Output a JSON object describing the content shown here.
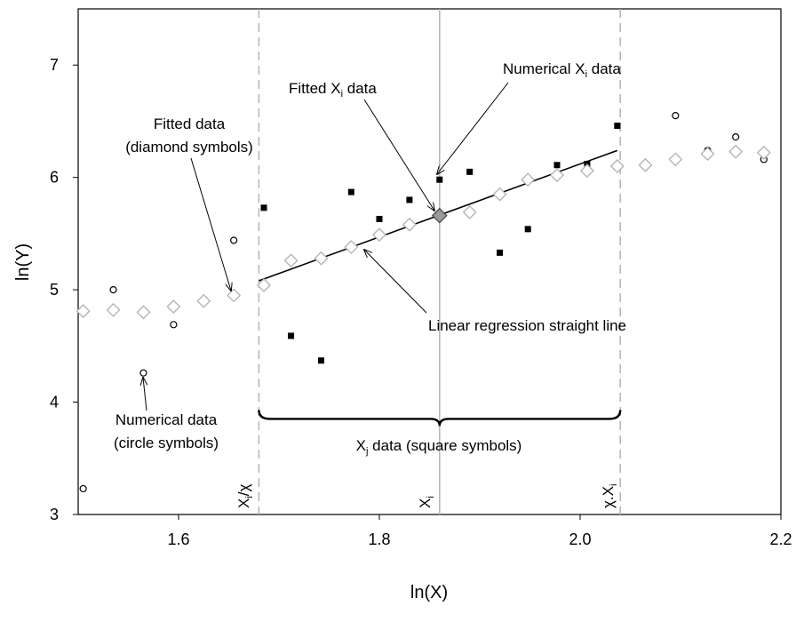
{
  "chart_data": {
    "type": "scatter",
    "title": "",
    "xlabel": "ln(X)",
    "ylabel": "ln(Y)",
    "xlim": [
      1.5,
      2.2
    ],
    "ylim": [
      3,
      7.5
    ],
    "grid": false,
    "x_ticks": [
      "1.6",
      "1.8",
      "2.0",
      "2.2"
    ],
    "y_ticks": [
      "3",
      "4",
      "5",
      "6",
      "7"
    ],
    "series": [
      {
        "marker": "open-circle",
        "x": [
          1.505,
          1.535,
          1.565,
          1.595,
          1.625,
          1.655,
          2.065,
          2.095,
          2.127,
          2.155,
          2.183
        ],
        "y": [
          3.23,
          5.0,
          4.26,
          4.69,
          4.9,
          5.44,
          6.1,
          6.55,
          6.24,
          6.36,
          6.16
        ]
      },
      {
        "marker": "filled-square",
        "x": [
          1.685,
          1.712,
          1.742,
          1.772,
          1.8,
          1.83,
          1.86,
          1.89,
          1.92,
          1.948,
          1.977,
          2.007,
          2.037
        ],
        "y": [
          5.73,
          4.59,
          4.37,
          5.87,
          5.63,
          5.8,
          5.98,
          6.05,
          5.33,
          5.54,
          6.11,
          6.12,
          6.46
        ]
      },
      {
        "marker": "open-diamond",
        "x": [
          1.505,
          1.535,
          1.565,
          1.595,
          1.625,
          1.655,
          1.685,
          1.712,
          1.742,
          1.772,
          1.8,
          1.83,
          1.89,
          1.92,
          1.948,
          1.977,
          2.007,
          2.037,
          2.065,
          2.095,
          2.127,
          2.155,
          2.183
        ],
        "y": [
          4.81,
          4.82,
          4.8,
          4.85,
          4.9,
          4.95,
          5.04,
          5.26,
          5.28,
          5.38,
          5.49,
          5.58,
          5.69,
          5.85,
          5.98,
          6.02,
          6.06,
          6.1,
          6.11,
          6.16,
          6.21,
          6.23,
          6.22
        ]
      },
      {
        "marker": "highlighted-diamond",
        "x": [
          1.86
        ],
        "y": [
          5.66
        ]
      }
    ],
    "regression_line": {
      "x": [
        1.68,
        2.037
      ],
      "y": [
        5.08,
        6.24
      ]
    },
    "vertical_lines": [
      {
        "x": 1.68,
        "style": "dashed",
        "label_main": "X",
        "label_sub": "i",
        "label_tail": "/χ"
      },
      {
        "x": 1.86,
        "style": "solid",
        "label_main": "X",
        "label_sub": "i",
        "label_tail": ""
      },
      {
        "x": 2.04,
        "style": "dashed",
        "label_main": "χ.X",
        "label_sub": "i",
        "label_tail": ""
      }
    ],
    "brace": {
      "x_from": 1.68,
      "x_to": 2.04,
      "y": 3.93
    },
    "annotations": {
      "fitted_data": [
        "Fitted data",
        "(diamond symbols)"
      ],
      "fitted_xi_main": "Fitted X",
      "fitted_xi_sub": "i",
      "fitted_xi_tail": " data",
      "numerical_xi_main": "Numerical X",
      "numerical_xi_sub": "i",
      "numerical_xi_tail": " data",
      "regression": "Linear regression straight line",
      "numerical_data": [
        "Numerical data",
        "(circle symbols)"
      ],
      "xj_main": "X",
      "xj_sub": "j",
      "xj_tail": " data (square symbols)"
    }
  }
}
